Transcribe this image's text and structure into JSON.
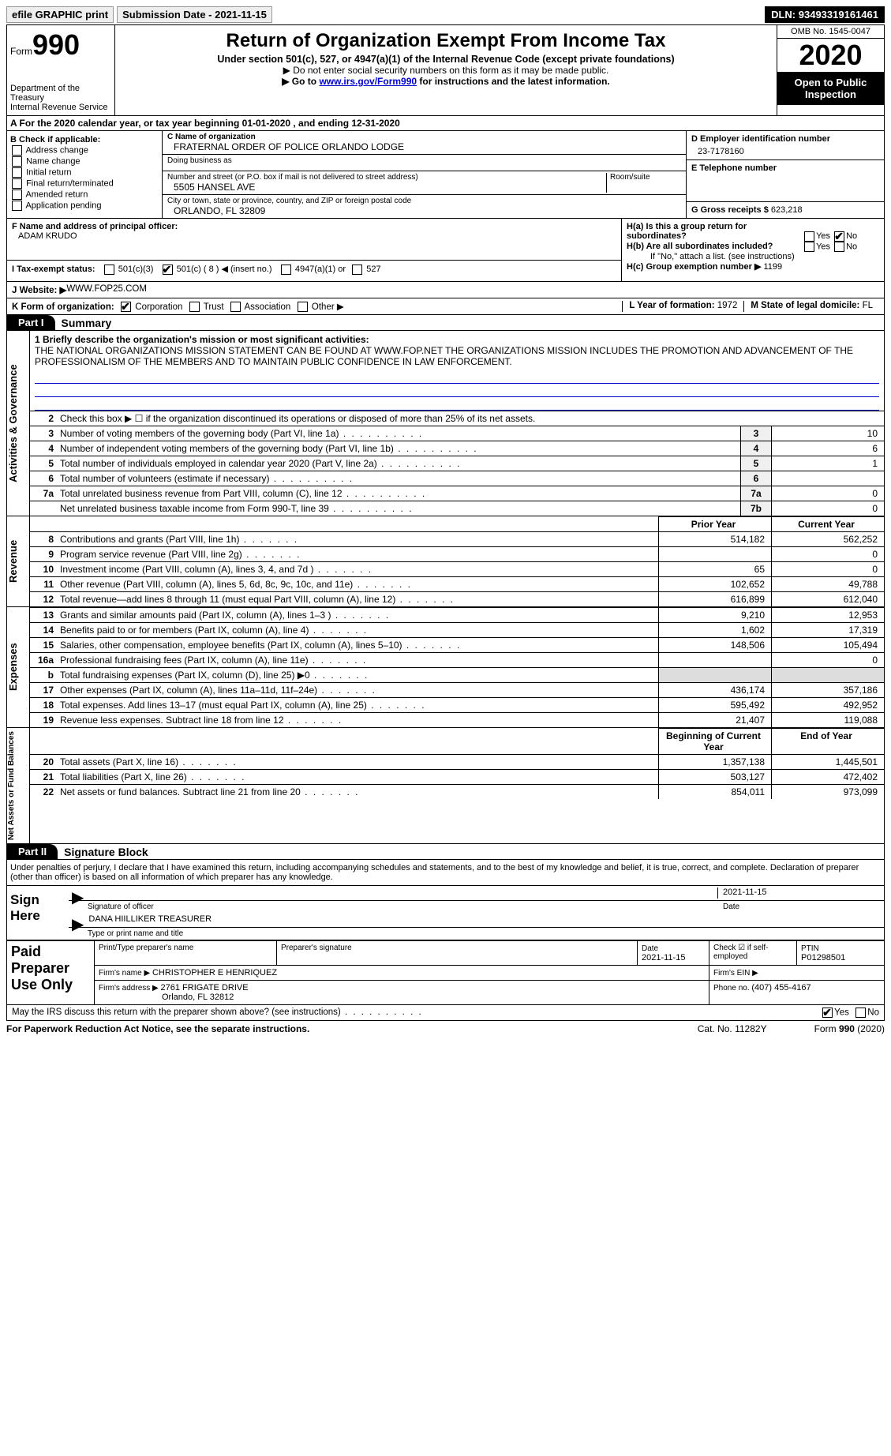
{
  "topbar": {
    "efile": "efile GRAPHIC print",
    "sub_label": "Submission Date - ",
    "sub_date": "2021-11-15",
    "dln_label": "DLN: ",
    "dln": "93493319161461"
  },
  "header": {
    "form_label": "Form",
    "form_num": "990",
    "dept": "Department of the Treasury\nInternal Revenue Service",
    "title": "Return of Organization Exempt From Income Tax",
    "subtitle": "Under section 501(c), 527, or 4947(a)(1) of the Internal Revenue Code (except private foundations)",
    "note1": "▶ Do not enter social security numbers on this form as it may be made public.",
    "note2_pre": "▶ Go to ",
    "note2_link": "www.irs.gov/Form990",
    "note2_post": " for instructions and the latest information.",
    "omb": "OMB No. 1545-0047",
    "year": "2020",
    "open": "Open to Public Inspection"
  },
  "sectionA": "A   For the 2020 calendar year, or tax year beginning 01-01-2020   , and ending 12-31-2020",
  "colB": {
    "title": "B Check if applicable:",
    "items": [
      "Address change",
      "Name change",
      "Initial return",
      "Final return/terminated",
      "Amended return",
      "Application pending"
    ]
  },
  "colC": {
    "name_label": "C Name of organization",
    "name": "FRATERNAL ORDER OF POLICE ORLANDO LODGE",
    "dba_label": "Doing business as",
    "street_label": "Number and street (or P.O. box if mail is not delivered to street address)",
    "street": "5505 HANSEL AVE",
    "room_label": "Room/suite",
    "city_label": "City or town, state or province, country, and ZIP or foreign postal code",
    "city": "ORLANDO, FL  32809"
  },
  "colDE": {
    "d_label": "D Employer identification number",
    "d_val": "23-7178160",
    "e_label": "E Telephone number",
    "g_label": "G Gross receipts $ ",
    "g_val": "623,218"
  },
  "rowF": {
    "label": "F  Name and address of principal officer:",
    "name": "ADAM KRUDO"
  },
  "rowH": {
    "a": "H(a)  Is this a group return for subordinates?",
    "b": "H(b)  Are all subordinates included?",
    "b_note": "If \"No,\" attach a list. (see instructions)",
    "c": "H(c)  Group exemption number ▶  ",
    "c_val": "1199",
    "yes": "Yes",
    "no": "No"
  },
  "rowI": {
    "label": "I    Tax-exempt status:",
    "opts": [
      "501(c)(3)",
      "501(c) ( 8 ) ◀ (insert no.)",
      "4947(a)(1) or",
      "527"
    ]
  },
  "rowJ": {
    "label": "J    Website: ▶ ",
    "val": "WWW.FOP25.COM"
  },
  "rowK": {
    "label": "K Form of organization:",
    "opts": [
      "Corporation",
      "Trust",
      "Association",
      "Other ▶"
    ]
  },
  "rowL": {
    "label": "L Year of formation: ",
    "val": "1972"
  },
  "rowM": {
    "label": "M State of legal domicile: ",
    "val": "FL"
  },
  "part1": {
    "tab_ag": "Activities & Governance",
    "tab_rev": "Revenue",
    "tab_exp": "Expenses",
    "tab_net": "Net Assets or Fund Balances",
    "hdr": "Part I",
    "title": "Summary",
    "line1_label": "1  Briefly describe the organization's mission or most significant activities:",
    "line1_text": "THE NATIONAL ORGANIZATIONS MISSION STATEMENT CAN BE FOUND AT WWW.FOP.NET THE ORGANIZATIONS MISSION INCLUDES THE PROMOTION AND ADVANCEMENT OF THE PROFESSIONALISM OF THE MEMBERS AND TO MAINTAIN PUBLIC CONFIDENCE IN LAW ENFORCEMENT.",
    "line2": "Check this box ▶ ☐ if the organization discontinued its operations or disposed of more than 25% of its net assets.",
    "rows_ag": [
      {
        "n": "3",
        "t": "Number of voting members of the governing body (Part VI, line 1a)",
        "box": "3",
        "v": "10"
      },
      {
        "n": "4",
        "t": "Number of independent voting members of the governing body (Part VI, line 1b)",
        "box": "4",
        "v": "6"
      },
      {
        "n": "5",
        "t": "Total number of individuals employed in calendar year 2020 (Part V, line 2a)",
        "box": "5",
        "v": "1"
      },
      {
        "n": "6",
        "t": "Total number of volunteers (estimate if necessary)",
        "box": "6",
        "v": ""
      },
      {
        "n": "7a",
        "t": "Total unrelated business revenue from Part VIII, column (C), line 12",
        "box": "7a",
        "v": "0"
      },
      {
        "n": "",
        "t": "Net unrelated business taxable income from Form 990-T, line 39",
        "box": "7b",
        "v": "0"
      }
    ],
    "col_py": "Prior Year",
    "col_cy": "Current Year",
    "rows_rev": [
      {
        "n": "8",
        "t": "Contributions and grants (Part VIII, line 1h)",
        "py": "514,182",
        "cy": "562,252"
      },
      {
        "n": "9",
        "t": "Program service revenue (Part VIII, line 2g)",
        "py": "",
        "cy": "0"
      },
      {
        "n": "10",
        "t": "Investment income (Part VIII, column (A), lines 3, 4, and 7d )",
        "py": "65",
        "cy": "0"
      },
      {
        "n": "11",
        "t": "Other revenue (Part VIII, column (A), lines 5, 6d, 8c, 9c, 10c, and 11e)",
        "py": "102,652",
        "cy": "49,788"
      },
      {
        "n": "12",
        "t": "Total revenue—add lines 8 through 11 (must equal Part VIII, column (A), line 12)",
        "py": "616,899",
        "cy": "612,040"
      }
    ],
    "rows_exp": [
      {
        "n": "13",
        "t": "Grants and similar amounts paid (Part IX, column (A), lines 1–3 )",
        "py": "9,210",
        "cy": "12,953"
      },
      {
        "n": "14",
        "t": "Benefits paid to or for members (Part IX, column (A), line 4)",
        "py": "1,602",
        "cy": "17,319"
      },
      {
        "n": "15",
        "t": "Salaries, other compensation, employee benefits (Part IX, column (A), lines 5–10)",
        "py": "148,506",
        "cy": "105,494"
      },
      {
        "n": "16a",
        "t": "Professional fundraising fees (Part IX, column (A), line 11e)",
        "py": "",
        "cy": "0"
      },
      {
        "n": "b",
        "t": "Total fundraising expenses (Part IX, column (D), line 25) ▶0",
        "py": "shade",
        "cy": "shade"
      },
      {
        "n": "17",
        "t": "Other expenses (Part IX, column (A), lines 11a–11d, 11f–24e)",
        "py": "436,174",
        "cy": "357,186"
      },
      {
        "n": "18",
        "t": "Total expenses. Add lines 13–17 (must equal Part IX, column (A), line 25)",
        "py": "595,492",
        "cy": "492,952"
      },
      {
        "n": "19",
        "t": "Revenue less expenses. Subtract line 18 from line 12",
        "py": "21,407",
        "cy": "119,088"
      }
    ],
    "col_boy": "Beginning of Current Year",
    "col_eoy": "End of Year",
    "rows_net": [
      {
        "n": "20",
        "t": "Total assets (Part X, line 16)",
        "py": "1,357,138",
        "cy": "1,445,501"
      },
      {
        "n": "21",
        "t": "Total liabilities (Part X, line 26)",
        "py": "503,127",
        "cy": "472,402"
      },
      {
        "n": "22",
        "t": "Net assets or fund balances. Subtract line 21 from line 20",
        "py": "854,011",
        "cy": "973,099"
      }
    ]
  },
  "part2": {
    "hdr": "Part II",
    "title": "Signature Block",
    "decl": "Under penalties of perjury, I declare that I have examined this return, including accompanying schedules and statements, and to the best of my knowledge and belief, it is true, correct, and complete. Declaration of preparer (other than officer) is based on all information of which preparer has any knowledge.",
    "sign_here": "Sign Here",
    "sig_officer": "Signature of officer",
    "date": "Date",
    "sig_date": "2021-11-15",
    "name_title": "DANA HIILLIKER  TREASURER",
    "name_label": "Type or print name and title",
    "paid": "Paid Preparer Use Only",
    "p_name_label": "Print/Type preparer's name",
    "p_sig_label": "Preparer's signature",
    "p_date_label": "Date",
    "p_date": "2021-11-15",
    "p_self": "Check ☑ if self-employed",
    "ptin_label": "PTIN",
    "ptin": "P01298501",
    "firm_name_label": "Firm's name    ▶ ",
    "firm_name": "CHRISTOPHER E HENRIQUEZ",
    "firm_ein_label": "Firm's EIN ▶",
    "firm_addr_label": "Firm's address ▶ ",
    "firm_addr1": "2761 FRIGATE DRIVE",
    "firm_addr2": "Orlando, FL  32812",
    "phone_label": "Phone no. ",
    "phone": "(407) 455-4167",
    "discuss": "May the IRS discuss this return with the preparer shown above? (see instructions)"
  },
  "footer": {
    "pra": "For Paperwork Reduction Act Notice, see the separate instructions.",
    "cat": "Cat. No. 11282Y",
    "form": "Form 990 (2020)"
  }
}
